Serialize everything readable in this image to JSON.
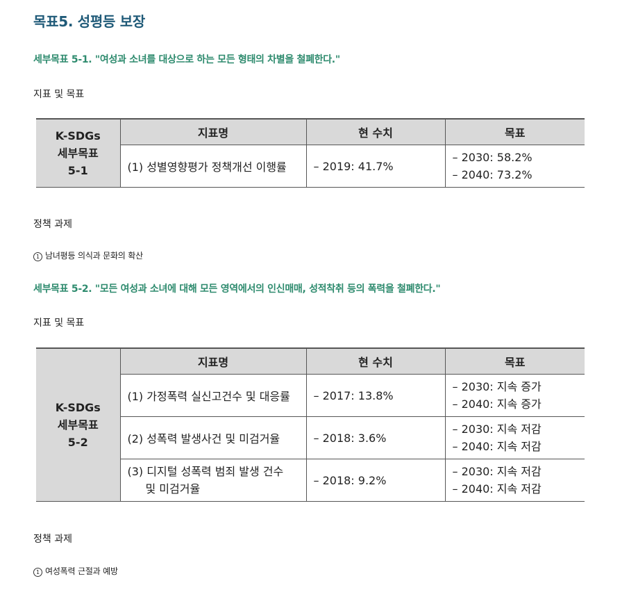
{
  "title": "목표5. 성평등 보장",
  "sections": [
    {
      "subgoal": "세부목표 5-1. \"여성과 소녀를 대상으로 하는 모든 형태의 차별을 철폐한다.\"",
      "indicator_label": "지표 및 목표",
      "table": {
        "headers": [
          "지표명",
          "현 수치",
          "목표"
        ],
        "row_header": [
          "K-SDGs",
          "세부목표",
          "5-1"
        ],
        "rows": [
          {
            "name": "(1) 성별영향평가 정책개선 이행률",
            "current": "– 2019:  41.7%",
            "targets": [
              "– 2030:  58.2%",
              "– 2040:  73.2%"
            ]
          }
        ]
      },
      "policy_label": "정책 과제",
      "tasks": [
        {
          "num": "1",
          "text": "남녀평등 의식과 문화의 확산"
        }
      ]
    },
    {
      "subgoal": "세부목표 5-2. \"모든 여성과 소녀에 대해 모든 영역에서의 인신매매, 성적착취 등의 폭력을 철폐한다.\"",
      "indicator_label": "지표 및 목표",
      "table": {
        "headers": [
          "지표명",
          "현 수치",
          "목표"
        ],
        "row_header": [
          "K-SDGs",
          "세부목표",
          "5-2"
        ],
        "rows": [
          {
            "name": "(1) 가정폭력 실신고건수 및 대응률",
            "current": "– 2017:  13.8%",
            "targets": [
              "– 2030:  지속 증가",
              "– 2040:  지속 증가"
            ]
          },
          {
            "name": "(2) 성폭력 발생사건 및 미검거율",
            "current": "– 2018:  3.6%",
            "targets": [
              "– 2030:  지속 저감",
              "– 2040:  지속 저감"
            ]
          },
          {
            "name_lines": [
              "(3) 디지털 성폭력 범죄 발생 건수",
              "및 미검거율"
            ],
            "current": "– 2018:  9.2%",
            "targets": [
              "– 2030:  지속 저감",
              "– 2040:  지속 저감"
            ]
          }
        ]
      },
      "policy_label": "정책 과제",
      "tasks": [
        {
          "num": "1",
          "text": "여성폭력 근절과 예방"
        }
      ]
    }
  ]
}
